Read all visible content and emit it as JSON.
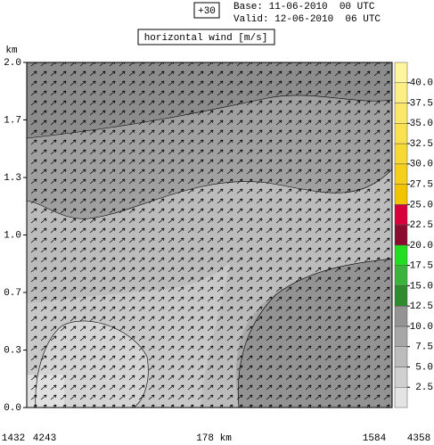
{
  "chart_data": {
    "type": "cross-section",
    "run_label": "+30",
    "base": "Base: 11-06-2010  00 UTC",
    "valid": "Valid: 12-06-2010  06 UTC",
    "title": "horizontal wind [m/s]",
    "y_unit": "km",
    "ylim": [
      0,
      2
    ],
    "yticks": [
      {
        "value": 2.0,
        "label": "2.0"
      },
      {
        "value": 1.667,
        "label": "1.7"
      },
      {
        "value": 1.333,
        "label": "1.3"
      },
      {
        "value": 1.0,
        "label": "1.0"
      },
      {
        "value": 0.667,
        "label": "0.7"
      },
      {
        "value": 0.333,
        "label": "0.3"
      },
      {
        "value": 0.0,
        "label": "0.0"
      }
    ],
    "x_labels": [
      "1432",
      "4243",
      "178 km",
      "1584",
      "4358"
    ],
    "colorbar": {
      "clim": [
        0,
        42.5
      ],
      "levels": [
        0,
        2.5,
        5,
        7.5,
        10,
        12.5,
        15,
        17.5,
        20,
        22.5,
        25,
        27.5,
        30,
        32.5,
        35,
        37.5,
        40,
        42.5
      ],
      "colors": [
        "#e4e4e4",
        "#d0d0d0",
        "#bcbcbc",
        "#a8a8a8",
        "#949494",
        "#2e8b2e",
        "#3cb43c",
        "#22dd22",
        "#8b0a30",
        "#d8003a",
        "#f2c400",
        "#f5cf1c",
        "#f7d936",
        "#f9e150",
        "#fbe86a",
        "#fdef84",
        "#fff59e"
      ],
      "ticks": [
        {
          "value": 2.5,
          "label": "2.5"
        },
        {
          "value": 5,
          "label": "5.0"
        },
        {
          "value": 7.5,
          "label": "7.5"
        },
        {
          "value": 10,
          "label": "10.0"
        },
        {
          "value": 12.5,
          "label": "12.5"
        },
        {
          "value": 15,
          "label": "15.0"
        },
        {
          "value": 17.5,
          "label": "17.5"
        },
        {
          "value": 20,
          "label": "20.0"
        },
        {
          "value": 22.5,
          "label": "22.5"
        },
        {
          "value": 25,
          "label": "25.0"
        },
        {
          "value": 27.5,
          "label": "27.5"
        },
        {
          "value": 30,
          "label": "30.0"
        },
        {
          "value": 32.5,
          "label": "32.5"
        },
        {
          "value": 35,
          "label": "35.0"
        },
        {
          "value": 37.5,
          "label": "37.5"
        },
        {
          "value": 40,
          "label": "40.0"
        }
      ]
    }
  }
}
